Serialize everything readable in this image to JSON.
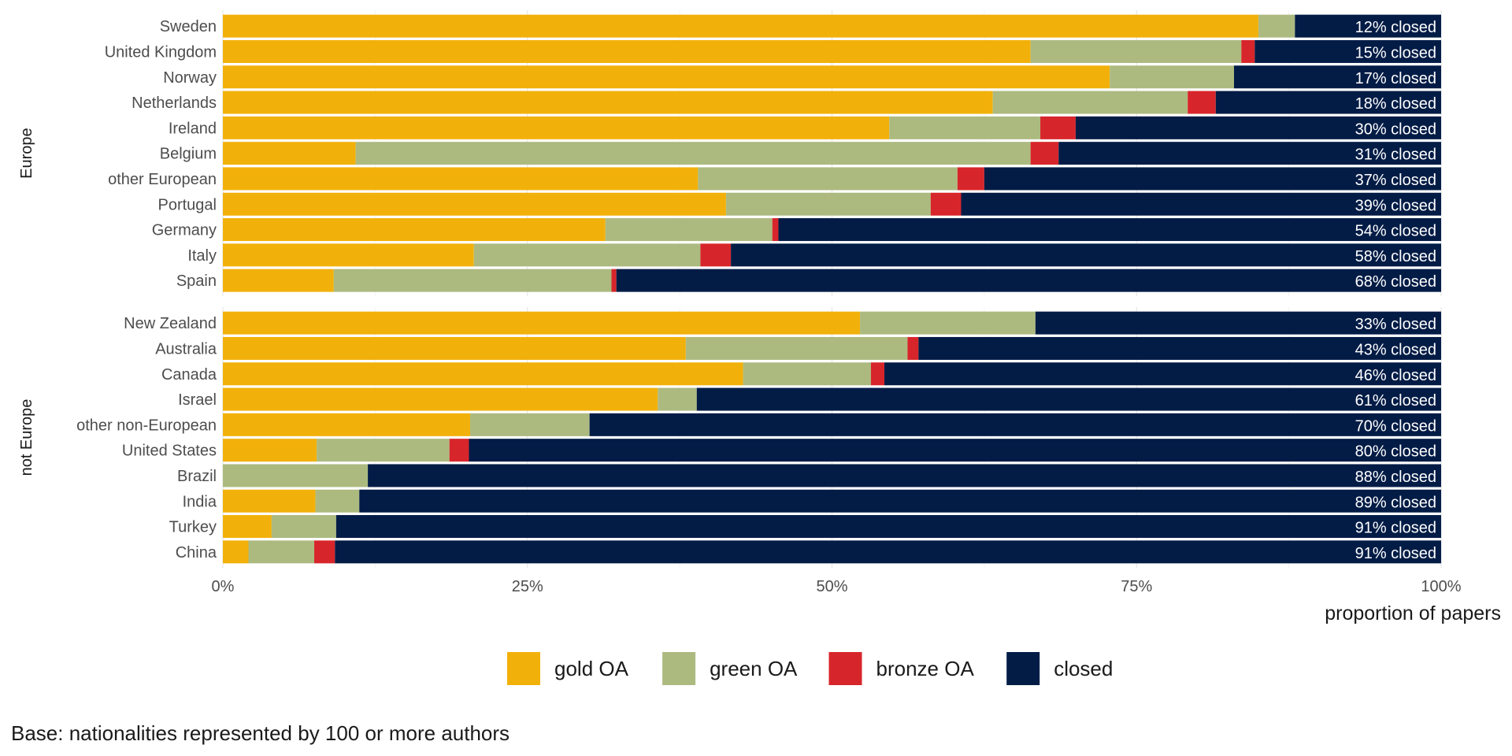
{
  "chart_data": {
    "type": "bar",
    "orientation": "horizontal",
    "stacked": true,
    "xlabel": "proportion of papers",
    "x_ticks": [
      "0%",
      "25%",
      "50%",
      "75%",
      "100%"
    ],
    "xlim": [
      0,
      100
    ],
    "grid": true,
    "legend_position": "bottom",
    "series": [
      {
        "name": "gold OA",
        "color": "#F2B10A"
      },
      {
        "name": "green OA",
        "color": "#ACBA80"
      },
      {
        "name": "bronze OA",
        "color": "#D7262B"
      },
      {
        "name": "closed",
        "color": "#031C46"
      }
    ],
    "groups": [
      {
        "label": "Europe",
        "rows": [
          {
            "country": "Sweden",
            "values": [
              85,
              3,
              0,
              12
            ],
            "label": "12% closed"
          },
          {
            "country": "United Kingdom",
            "values": [
              66.3,
              17.3,
              1.1,
              15.3
            ],
            "label": "15% closed"
          },
          {
            "country": "Norway",
            "values": [
              72.8,
              10.2,
              0,
              17
            ],
            "label": "17% closed"
          },
          {
            "country": "Netherlands",
            "values": [
              63.2,
              16,
              2.3,
              18.5
            ],
            "label": "18% closed"
          },
          {
            "country": "Ireland",
            "values": [
              54.7,
              12.4,
              2.9,
              30
            ],
            "label": "30% closed"
          },
          {
            "country": "Belgium",
            "values": [
              10.9,
              55.4,
              2.3,
              31.4
            ],
            "label": "31% closed"
          },
          {
            "country": "other European",
            "values": [
              39,
              21.3,
              2.2,
              37.5
            ],
            "label": "37% closed"
          },
          {
            "country": "Portugal",
            "values": [
              41.3,
              16.8,
              2.5,
              39.4
            ],
            "label": "39% closed"
          },
          {
            "country": "Germany",
            "values": [
              31.4,
              13.7,
              0.5,
              54.4
            ],
            "label": "54% closed"
          },
          {
            "country": "Italy",
            "values": [
              20.6,
              18.6,
              2.5,
              58.3
            ],
            "label": "58% closed"
          },
          {
            "country": "Spain",
            "values": [
              9.1,
              22.8,
              0.4,
              67.7
            ],
            "label": "68% closed"
          }
        ]
      },
      {
        "label": "not Europe",
        "rows": [
          {
            "country": "New Zealand",
            "values": [
              52.3,
              14.4,
              0,
              33.3
            ],
            "label": "33% closed"
          },
          {
            "country": "Australia",
            "values": [
              38,
              18.2,
              0.9,
              42.9
            ],
            "label": "43% closed"
          },
          {
            "country": "Canada",
            "values": [
              42.7,
              10.5,
              1.1,
              45.7
            ],
            "label": "46% closed"
          },
          {
            "country": "Israel",
            "values": [
              35.7,
              3.2,
              0,
              61.1
            ],
            "label": "61% closed"
          },
          {
            "country": "other non-European",
            "values": [
              20.3,
              9.8,
              0,
              69.9
            ],
            "label": "70% closed"
          },
          {
            "country": "United States",
            "values": [
              7.7,
              10.9,
              1.6,
              79.8
            ],
            "label": "80% closed"
          },
          {
            "country": "Brazil",
            "values": [
              0,
              11.9,
              0,
              88.1
            ],
            "label": "88% closed"
          },
          {
            "country": "India",
            "values": [
              7.6,
              3.6,
              0,
              88.8
            ],
            "label": "89% closed"
          },
          {
            "country": "Turkey",
            "values": [
              4,
              5.3,
              0,
              90.7
            ],
            "label": "91% closed"
          },
          {
            "country": "China",
            "values": [
              2.1,
              5.4,
              1.7,
              90.8
            ],
            "label": "91% closed"
          }
        ]
      }
    ],
    "caption": "Base: nationalities represented by 100 or more authors"
  }
}
